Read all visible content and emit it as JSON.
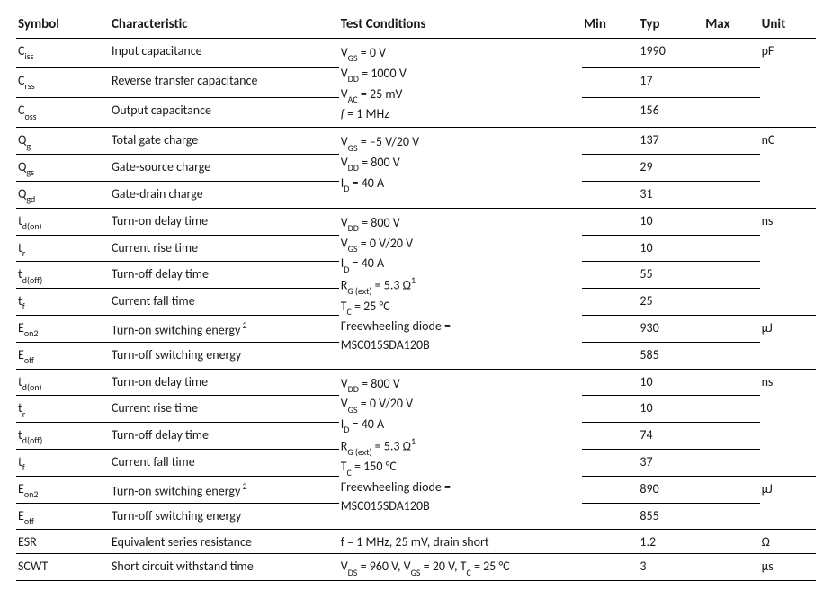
{
  "headers": {
    "symbol": "Symbol",
    "characteristic": "Characteristic",
    "conditions": "Test Conditions",
    "min": "Min",
    "typ": "Typ",
    "max": "Max",
    "unit": "Unit"
  },
  "groups": [
    {
      "unit": "pF",
      "conditions_html": "V<sub>GS</sub> = 0 V<br>V<sub>DD</sub> = 1000 V<br>V<sub>AC</sub> = 25 mV<br><span class='ital'>f</span> = 1 MHz",
      "rows": [
        {
          "symbol_html": "C<sub>iss</sub>",
          "char": "Input capacitance",
          "typ": "1990"
        },
        {
          "symbol_html": "C<sub>rss</sub>",
          "char": "Reverse transfer capacitance",
          "typ": "17"
        },
        {
          "symbol_html": "C<sub>oss</sub>",
          "char": "Output capacitance",
          "typ": "156"
        }
      ]
    },
    {
      "unit": "nC",
      "conditions_html": "V<sub>GS</sub> = –5 V/20 V<br>V<sub>DD</sub> = 800 V<br>I<sub>D</sub> = 40 A",
      "rows": [
        {
          "symbol_html": "Q<sub>g</sub>",
          "char": "Total gate charge",
          "typ": "137"
        },
        {
          "symbol_html": "Q<sub>gs</sub>",
          "char": "Gate-source charge",
          "typ": "29"
        },
        {
          "symbol_html": "Q<sub>gd</sub>",
          "char": "Gate-drain charge",
          "typ": "31"
        }
      ]
    },
    {
      "unit_first4": "ns",
      "unit_last2": "µJ",
      "conditions_html": "V<sub>DD</sub> = 800 V<br>V<sub>GS</sub> = 0 V/20 V<br>I<sub>D</sub> = 40 A<br>R<sub>G (ext)</sub> = 5.3 Ω<sup>1</sup><br>T<sub>C</sub> = 25 °C<br>Freewheeling diode =<br>MSC015SDA120B",
      "rows": [
        {
          "symbol_html": "t<sub>d(on)</sub>",
          "char": "Turn-on delay time",
          "typ": "10"
        },
        {
          "symbol_html": "t<sub>r</sub>",
          "char": "Current rise time",
          "typ": "10"
        },
        {
          "symbol_html": "t<sub>d(off)</sub>",
          "char": "Turn-off delay time",
          "typ": "55"
        },
        {
          "symbol_html": "t<sub>f</sub>",
          "char": "Current fall time",
          "typ": "25"
        },
        {
          "symbol_html": "E<sub>on2</sub>",
          "char_html": "Turn-on switching energy<sup> 2</sup>",
          "typ": "930"
        },
        {
          "symbol_html": "E<sub>off</sub>",
          "char": "Turn-off switching energy",
          "typ": "585"
        }
      ]
    },
    {
      "unit_first4": "ns",
      "unit_last2": "µJ",
      "conditions_html": "V<sub>DD</sub> = 800 V<br>V<sub>GS</sub> = 0 V/20 V<br>I<sub>D</sub> = 40 A<br>R<sub>G (ext)</sub> = 5.3 Ω<sup>1</sup><br>T<sub>C</sub> = 150 °C<br>Freewheeling diode =<br>MSC015SDA120B",
      "rows": [
        {
          "symbol_html": "t<sub>d(on)</sub>",
          "char": "Turn-on delay time",
          "typ": "10"
        },
        {
          "symbol_html": "t<sub>r</sub>",
          "char": "Current rise time",
          "typ": "10"
        },
        {
          "symbol_html": "t<sub>d(off)</sub>",
          "char": "Turn-off delay time",
          "typ": "74"
        },
        {
          "symbol_html": "t<sub>f</sub>",
          "char": "Current fall time",
          "typ": "37"
        },
        {
          "symbol_html": "E<sub>on2</sub>",
          "char_html": "Turn-on switching energy<sup> 2</sup>",
          "typ": "890"
        },
        {
          "symbol_html": "E<sub>off</sub>",
          "char": "Turn-off switching energy",
          "typ": "855"
        }
      ]
    },
    {
      "single_rows": [
        {
          "symbol": "ESR",
          "char": "Equivalent series resistance",
          "cond_html": "f = 1 MHz, 25 mV, drain short",
          "typ": "1.2",
          "unit": "Ω"
        },
        {
          "symbol": "SCWT",
          "char": "Short circuit withstand time",
          "cond_html": "V<sub>DS</sub> = 960 V, V<sub>GS</sub> = 20 V, T<sub>C</sub> = 25 °C",
          "typ": "3",
          "unit": "µs"
        }
      ]
    }
  ]
}
